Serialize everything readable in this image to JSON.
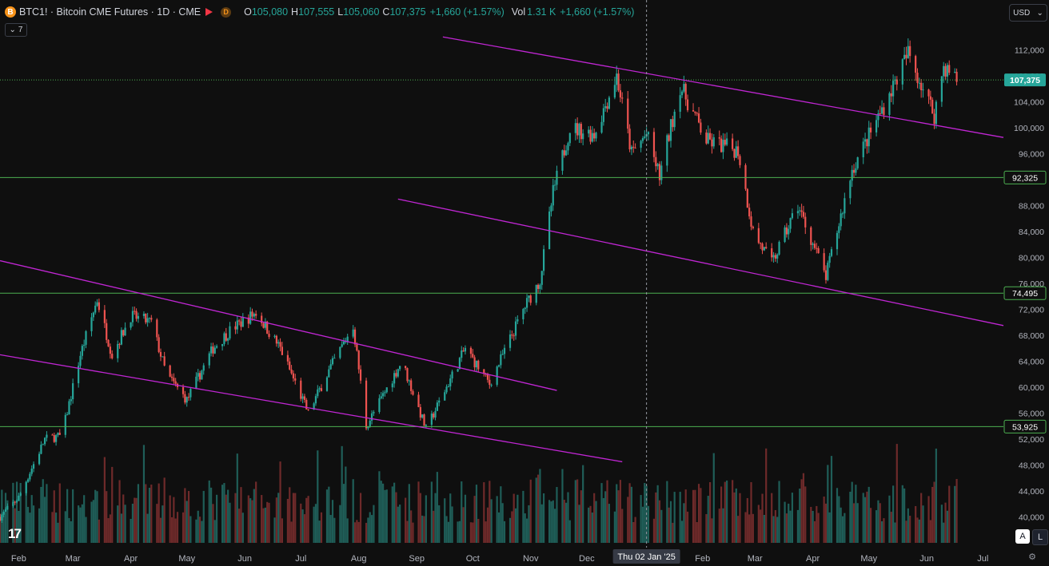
{
  "header": {
    "coin_letter": "B",
    "title": "BTC1! · Bitcoin CME Futures · 1D · CME",
    "d_badge": "D",
    "o_label": "O",
    "o_value": "105,080",
    "h_label": "H",
    "h_value": "107,555",
    "l_label": "L",
    "l_value": "105,060",
    "c_label": "C",
    "c_value": "107,375",
    "change": "+1,660 (+1.57%)",
    "vol_label": "Vol",
    "vol_value": "1.31 K",
    "vol_change": "+1,660 (+1.57%)"
  },
  "indicator_toggle": "7",
  "currency": "USD",
  "axis_buttons": {
    "auto": "A",
    "log": "L"
  },
  "colors": {
    "background": "#0f0f0f",
    "up": "#26a69a",
    "down": "#ef5350",
    "hline": "#4caf50",
    "trend": "#c026d3",
    "price_tag": "#26a69a",
    "text": "#d1d4dc"
  },
  "chart_data": {
    "type": "candlestick",
    "x_range": [
      "2024-01-22",
      "2025-07-12"
    ],
    "ylim": [
      36000,
      116000
    ],
    "y_ticks": [
      40000,
      44000,
      48000,
      52000,
      56000,
      60000,
      64000,
      68000,
      72000,
      76000,
      80000,
      84000,
      88000,
      92000,
      96000,
      100000,
      104000,
      108000,
      112000
    ],
    "y_tick_labels": [
      "40,000",
      "44,000",
      "48,000",
      "52,000",
      "56,000",
      "60,000",
      "64,000",
      "68,000",
      "72,000",
      "76,000",
      "80,000",
      "84,000",
      "88,000",
      "92,000",
      "96,000",
      "100,000",
      "104,000",
      "108,000",
      "112,000"
    ],
    "x_ticks": [
      {
        "date": "2024-02-01",
        "label": "Feb"
      },
      {
        "date": "2024-03-01",
        "label": "Mar"
      },
      {
        "date": "2024-04-01",
        "label": "Apr"
      },
      {
        "date": "2024-05-01",
        "label": "May"
      },
      {
        "date": "2024-06-01",
        "label": "Jun"
      },
      {
        "date": "2024-07-01",
        "label": "Jul"
      },
      {
        "date": "2024-08-01",
        "label": "Aug"
      },
      {
        "date": "2024-09-01",
        "label": "Sep"
      },
      {
        "date": "2024-10-01",
        "label": "Oct"
      },
      {
        "date": "2024-11-01",
        "label": "Nov"
      },
      {
        "date": "2024-12-01",
        "label": "Dec"
      },
      {
        "date": "2025-02-01",
        "label": "Feb"
      },
      {
        "date": "2025-03-01",
        "label": "Mar"
      },
      {
        "date": "2025-04-01",
        "label": "Apr"
      },
      {
        "date": "2025-05-01",
        "label": "May"
      },
      {
        "date": "2025-06-01",
        "label": "Jun"
      },
      {
        "date": "2025-07-01",
        "label": "Jul"
      }
    ],
    "crosshair": {
      "date": "2025-01-02",
      "label": "Thu 02 Jan '25"
    },
    "last_price": {
      "value": 107375,
      "label": "107,375"
    },
    "horizontal_levels": [
      {
        "value": 92325,
        "label": "92,325"
      },
      {
        "value": 74495,
        "label": "74,495"
      },
      {
        "value": 53925,
        "label": "53,925"
      }
    ],
    "trend_lines": [
      {
        "start": {
          "date": "2024-09-15",
          "value": 114000
        },
        "end": {
          "date": "2025-07-12",
          "value": 98500
        }
      },
      {
        "start": {
          "date": "2024-08-22",
          "value": 89000
        },
        "end": {
          "date": "2025-07-12",
          "value": 69500
        }
      },
      {
        "start": {
          "date": "2024-01-22",
          "value": 79500
        },
        "end": {
          "date": "2024-11-15",
          "value": 59500
        }
      },
      {
        "start": {
          "date": "2024-01-22",
          "value": 65000
        },
        "end": {
          "date": "2024-12-20",
          "value": 48500
        }
      }
    ],
    "close_path": [
      {
        "date": "2024-01-22",
        "value": 40000
      },
      {
        "date": "2024-02-01",
        "value": 43000
      },
      {
        "date": "2024-02-15",
        "value": 52000
      },
      {
        "date": "2024-02-24",
        "value": 52500
      },
      {
        "date": "2024-03-05",
        "value": 65000
      },
      {
        "date": "2024-03-14",
        "value": 73500
      },
      {
        "date": "2024-03-22",
        "value": 65000
      },
      {
        "date": "2024-04-01",
        "value": 71000
      },
      {
        "date": "2024-04-12",
        "value": 70000
      },
      {
        "date": "2024-04-20",
        "value": 62000
      },
      {
        "date": "2024-05-01",
        "value": 58000
      },
      {
        "date": "2024-05-15",
        "value": 66000
      },
      {
        "date": "2024-05-25",
        "value": 69000
      },
      {
        "date": "2024-06-07",
        "value": 71500
      },
      {
        "date": "2024-06-20",
        "value": 66000
      },
      {
        "date": "2024-07-05",
        "value": 56000
      },
      {
        "date": "2024-07-15",
        "value": 62000
      },
      {
        "date": "2024-07-29",
        "value": 69500
      },
      {
        "date": "2024-08-05",
        "value": 54000
      },
      {
        "date": "2024-08-24",
        "value": 64000
      },
      {
        "date": "2024-09-06",
        "value": 53500
      },
      {
        "date": "2024-09-27",
        "value": 66000
      },
      {
        "date": "2024-10-10",
        "value": 60500
      },
      {
        "date": "2024-10-29",
        "value": 72500
      },
      {
        "date": "2024-11-06",
        "value": 76500
      },
      {
        "date": "2024-11-13",
        "value": 90000
      },
      {
        "date": "2024-11-22",
        "value": 100000
      },
      {
        "date": "2024-12-05",
        "value": 99000
      },
      {
        "date": "2024-12-17",
        "value": 108000
      },
      {
        "date": "2024-12-25",
        "value": 96000
      },
      {
        "date": "2025-01-02",
        "value": 99000
      },
      {
        "date": "2025-01-09",
        "value": 92500
      },
      {
        "date": "2025-01-20",
        "value": 106500
      },
      {
        "date": "2025-02-03",
        "value": 98000
      },
      {
        "date": "2025-02-20",
        "value": 96500
      },
      {
        "date": "2025-02-28",
        "value": 84000
      },
      {
        "date": "2025-03-10",
        "value": 79000
      },
      {
        "date": "2025-03-24",
        "value": 88000
      },
      {
        "date": "2025-04-08",
        "value": 77000
      },
      {
        "date": "2025-04-22",
        "value": 93500
      },
      {
        "date": "2025-05-10",
        "value": 104000
      },
      {
        "date": "2025-05-22",
        "value": 111500
      },
      {
        "date": "2025-06-05",
        "value": 102000
      },
      {
        "date": "2025-06-10",
        "value": 109500
      },
      {
        "date": "2025-06-17",
        "value": 107375
      }
    ]
  }
}
